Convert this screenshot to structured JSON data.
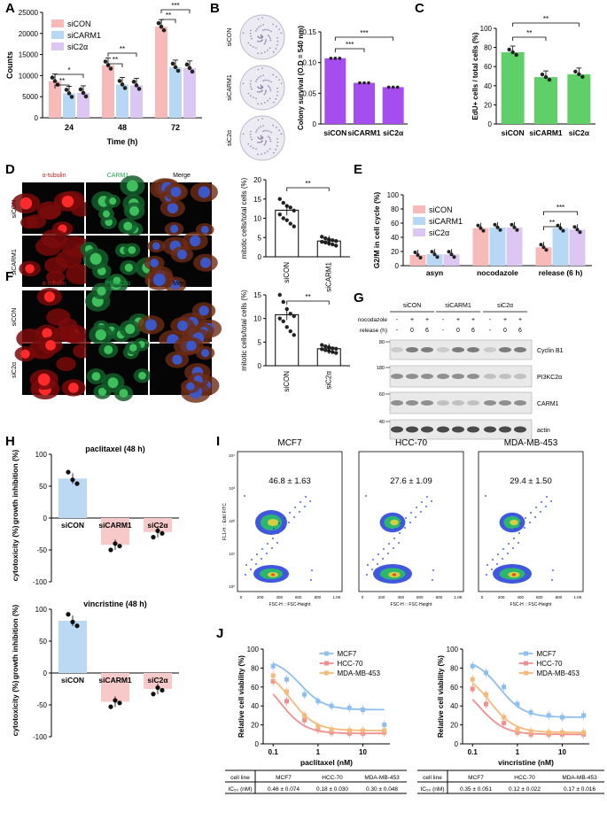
{
  "panel_labels": [
    "A",
    "B",
    "C",
    "D",
    "E",
    "F",
    "G",
    "H",
    "I",
    "J"
  ],
  "colors": {
    "siCON": "#f8b9b9",
    "siCARM1": "#b7d8f4",
    "siC2a": "#dcc6f3",
    "purple": "#a64df0",
    "green": "#5fd068",
    "red": "#d21f1f",
    "greenfl": "#1fa64a",
    "mcf7": "#8fbef0",
    "hcc70": "#f08f8f",
    "mda": "#f5b97a"
  },
  "panelA": {
    "ylabel": "Counts",
    "xlabel": "Time  (h)",
    "yticks": [
      "0",
      "5000",
      "10000",
      "15000",
      "20000",
      "25000"
    ],
    "legend": [
      "siCON",
      "siCARM1",
      "siC2α"
    ],
    "sig": [
      "**",
      "*",
      "**",
      "**",
      "**",
      "***"
    ]
  },
  "panelB": {
    "img_labels": [
      "siCON",
      "siCARM1",
      "siC2α"
    ],
    "ylabel": "Colony survival (O.D = 540 nm)",
    "yticks": [
      "0",
      "0.05",
      "0.10",
      "0.15"
    ],
    "sig": [
      "***",
      "***"
    ]
  },
  "panelC": {
    "ylabel": "EdU+ cells / total cells (%)",
    "yticks": [
      "0",
      "20",
      "40",
      "60",
      "80",
      "100"
    ],
    "sig": [
      "**",
      "**"
    ]
  },
  "panelD": {
    "col_titles": [
      "α-tubulin",
      "CARM1",
      "Merge"
    ],
    "rows": [
      "siCON",
      "siCARM1"
    ],
    "ylabel": "mitotic cells/total cells  (%)",
    "yticks": [
      "0",
      "5",
      "10",
      "15",
      "20"
    ],
    "sig": "**"
  },
  "panelE": {
    "col_titles": [
      "α-tubulin",
      "PI3KC2α",
      "Merge"
    ],
    "rows": [
      "siCON",
      "siC2α"
    ],
    "ylabel": "mitotic cells/total cells  (%)",
    "yticks": [
      "0",
      "5",
      "10",
      "15"
    ],
    "sig": "**"
  },
  "panelF": {
    "ylabel": "G2/M in cell cycle (%)",
    "yticks": [
      "0",
      "20",
      "40",
      "60",
      "80",
      "100"
    ],
    "legend": [
      "siCON",
      "siCARM1",
      "siC2α"
    ],
    "sig": [
      "**",
      "***"
    ]
  },
  "panelG": {
    "groups": [
      "siCON",
      "siCARM1",
      "siC2α"
    ],
    "row_labels": [
      "nocodazole",
      "release (h)"
    ],
    "nocodazole": [
      "-",
      "+",
      "+",
      "-",
      "+",
      "+",
      "-",
      "+",
      "+"
    ],
    "release": [
      "-",
      "0",
      "6",
      "-",
      "0",
      "6",
      "-",
      "0",
      "6"
    ],
    "markers": [
      "80",
      "180",
      "60",
      "40"
    ],
    "bands": [
      "Cyclin B1",
      "PI3KC2α",
      "CARM1",
      "actin"
    ]
  },
  "panelH": {
    "titles": [
      "paclitaxel (48 h)",
      "vincristine (48 h)"
    ],
    "ylabel_top": "growth inhibition (%)",
    "ylabel_bottom": "cytotoxicity (%)",
    "yticks": [
      "100",
      "50",
      "0",
      "-50",
      "-100"
    ],
    "cats": [
      "siCON",
      "siCARM1",
      "siC2α"
    ]
  },
  "panelI": {
    "lines": [
      "MCF7",
      "HCC-70",
      "MDA-MB-453"
    ],
    "values": [
      "46.8 ± 1.63",
      "27.6 ± 1.09",
      "29.4 ± 1.50"
    ],
    "ylabel": "FL1-H :: EdU FITC",
    "xlabel": "FSC-H :: FSC-Height",
    "xticks": [
      "0",
      "200",
      "400",
      "600",
      "800",
      "1.0K"
    ],
    "yticks": [
      "10⁰",
      "10¹",
      "10²",
      "10³",
      "10⁴"
    ]
  },
  "panelJ": {
    "ylabel": "Relative cell viability (%)",
    "xlabels": [
      "paclitaxel (nM)",
      "vincristine (nM)"
    ],
    "xticks": [
      "0.1",
      "1",
      "10"
    ],
    "yticks": [
      "0",
      "20",
      "40",
      "60",
      "80",
      "100"
    ],
    "legend": [
      "MCF7",
      "HCC-70",
      "MDA-MB-453"
    ],
    "table_header": [
      "cell line",
      "MCF7",
      "HCC-70",
      "MDA-MB-453"
    ],
    "ic50_label": "IC₅₀ (nM)",
    "table_left": [
      "0.46 ± 0.074",
      "0.18 ± 0.030",
      "0.30 ± 0.048"
    ],
    "table_right": [
      "0.35 ± 0.051",
      "0.12 ± 0.022",
      "0.17 ± 0.016"
    ]
  },
  "chart_data": [
    {
      "type": "bar",
      "panel": "A",
      "categories": [
        "24",
        "48",
        "72"
      ],
      "xlabel": "Time  (h)",
      "ylabel": "Counts",
      "ylim": [
        0,
        25000
      ],
      "series": [
        {
          "name": "siCON",
          "values": [
            8700,
            12500,
            21600
          ]
        },
        {
          "name": "siCARM1",
          "values": [
            5800,
            7900,
            12000
          ]
        },
        {
          "name": "siC2α",
          "values": [
            5900,
            7700,
            11800
          ]
        }
      ]
    },
    {
      "type": "bar",
      "panel": "B",
      "categories": [
        "siCON",
        "siCARM1",
        "siC2α"
      ],
      "ylabel": "Colony survival (O.D = 540 nm)",
      "ylim": [
        0,
        0.15
      ],
      "values": [
        0.107,
        0.067,
        0.06
      ]
    },
    {
      "type": "bar",
      "panel": "C",
      "categories": [
        "siCON",
        "siCARM1",
        "siC2α"
      ],
      "ylabel": "EdU+ cells / total cells (%)",
      "ylim": [
        0,
        100
      ],
      "values": [
        75,
        49,
        52
      ]
    },
    {
      "type": "bar",
      "panel": "D",
      "categories": [
        "siCON",
        "siCARM1"
      ],
      "ylabel": "mitotic cells/total cells  (%)",
      "ylim": [
        0,
        20
      ],
      "values": [
        12.1,
        4.1
      ]
    },
    {
      "type": "bar",
      "panel": "E",
      "categories": [
        "siCON",
        "siC2α"
      ],
      "ylabel": "mitotic cells/total cells  (%)",
      "ylim": [
        0,
        15
      ],
      "values": [
        10.8,
        3.6
      ]
    },
    {
      "type": "bar",
      "panel": "F",
      "categories": [
        "asyn",
        "nocodazole",
        "release (6 h)"
      ],
      "ylabel": "G2/M in cell cycle (%)",
      "ylim": [
        0,
        100
      ],
      "series": [
        {
          "name": "siCON",
          "values": [
            15,
            53,
            26
          ]
        },
        {
          "name": "siCARM1",
          "values": [
            16,
            54,
            53
          ]
        },
        {
          "name": "siC2α",
          "values": [
            16,
            54,
            51
          ]
        }
      ]
    },
    {
      "type": "bar",
      "panel": "H-top",
      "categories": [
        "siCON",
        "siCARM1",
        "siC2α"
      ],
      "title": "paclitaxel (48 h)",
      "ylim": [
        -100,
        100
      ],
      "values": [
        62,
        -42,
        -22
      ]
    },
    {
      "type": "bar",
      "panel": "H-bottom",
      "categories": [
        "siCON",
        "siCARM1",
        "siC2α"
      ],
      "title": "vincristine (48 h)",
      "ylim": [
        -100,
        100
      ],
      "values": [
        82,
        -45,
        -25
      ]
    },
    {
      "type": "line",
      "panel": "J-left",
      "xlabel": "paclitaxel (nM)",
      "ylabel": "Relative cell viability (%)",
      "ylim": [
        0,
        100
      ],
      "x": [
        0.1,
        0.2,
        0.5,
        1,
        2,
        5,
        10,
        30
      ],
      "series": [
        {
          "name": "MCF7",
          "values": [
            82,
            68,
            52,
            45,
            40,
            38,
            36,
            20
          ]
        },
        {
          "name": "HCC-70",
          "values": [
            66,
            45,
            25,
            15,
            12,
            11,
            11,
            12
          ]
        },
        {
          "name": "MDA-MB-453",
          "values": [
            72,
            55,
            30,
            18,
            15,
            14,
            14,
            14
          ]
        }
      ]
    },
    {
      "type": "line",
      "panel": "J-right",
      "xlabel": "vincristine (nM)",
      "ylabel": "Relative cell viability (%)",
      "ylim": [
        0,
        100
      ],
      "x": [
        0.1,
        0.2,
        0.5,
        1,
        2,
        5,
        10,
        30
      ],
      "series": [
        {
          "name": "MCF7",
          "values": [
            82,
            75,
            60,
            42,
            33,
            30,
            28,
            30
          ]
        },
        {
          "name": "HCC-70",
          "values": [
            58,
            42,
            22,
            12,
            10,
            10,
            10,
            10
          ]
        },
        {
          "name": "MDA-MB-453",
          "values": [
            68,
            52,
            28,
            15,
            13,
            12,
            12,
            12
          ]
        }
      ]
    }
  ]
}
